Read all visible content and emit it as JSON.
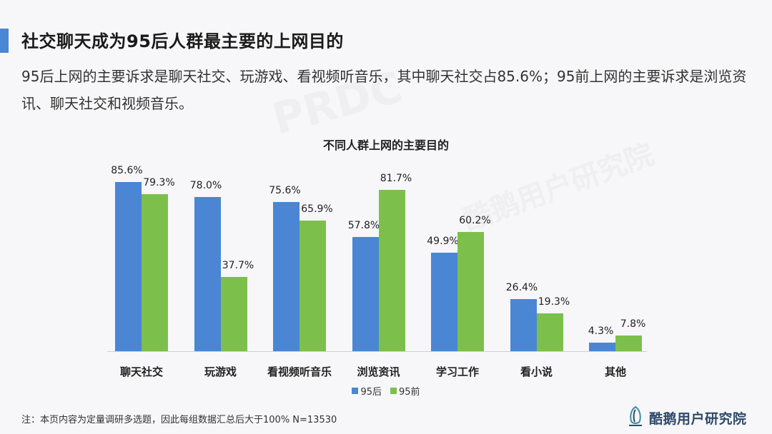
{
  "header": {
    "title": "社交聊天成为95后人群最主要的上网目的",
    "subtitle": "95后上网的主要诉求是聊天社交、玩游戏、看视频听音乐，其中聊天社交占85.6%；95前上网的主要诉求是浏览资讯、聊天社交和视频音乐。"
  },
  "colors": {
    "accent": "#4a86d4",
    "series_95hou": "#4a86d4",
    "series_95qian": "#7cc04b",
    "logo_text": "#2f4a6a"
  },
  "chart_data": {
    "type": "bar",
    "title": "不同人群上网的主要目的",
    "xlabel": "",
    "ylabel": "",
    "ylim": [
      0,
      100
    ],
    "grid": false,
    "legend_position": "bottom",
    "categories": [
      "聊天社交",
      "玩游戏",
      "看视频听音乐",
      "浏览资讯",
      "学习工作",
      "看小说",
      "其他"
    ],
    "series": [
      {
        "name": "95后",
        "values": [
          85.6,
          78.0,
          75.6,
          57.8,
          49.9,
          26.4,
          4.3
        ],
        "labels": [
          "85.6%",
          "78.0%",
          "75.6%",
          "57.8%",
          "49.9%",
          "26.4%",
          "4.3%"
        ]
      },
      {
        "name": "95前",
        "values": [
          79.3,
          37.7,
          65.9,
          81.7,
          60.2,
          19.3,
          7.8
        ],
        "labels": [
          "79.3%",
          "37.7%",
          "65.9%",
          "81.7%",
          "60.2%",
          "19.3%",
          "7.8%"
        ]
      }
    ]
  },
  "footer": {
    "note": "注：本页内容为定量调研多选题，因此每组数据汇总后大于100%  N=13530",
    "logo_text": "酷鹅用户研究院"
  },
  "watermarks": [
    "酷鹅用户研究院",
    "PRDC"
  ]
}
